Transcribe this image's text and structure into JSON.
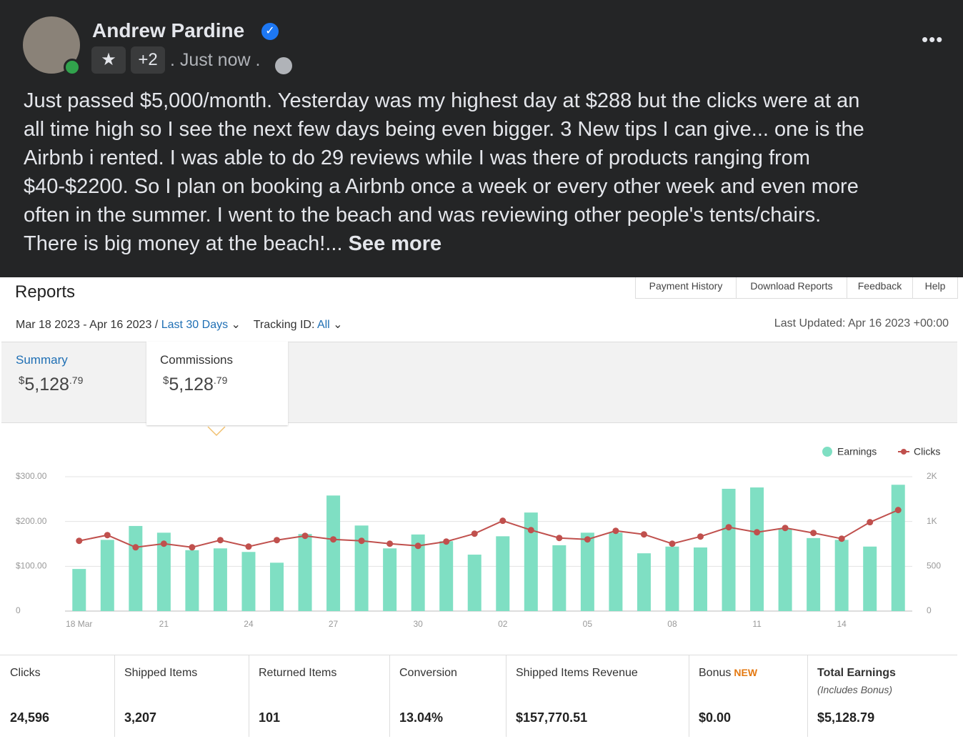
{
  "post": {
    "author": "Andrew Pardine",
    "badge": "+2",
    "time": ". Just now .",
    "lines": [
      "Just passed $5,000/month. Yesterday was my highest day at $288 but the clicks were at an",
      "all time high so I see the next few days being even bigger. 3 New tips I can give... one is the",
      "Airbnb i rented. I was able to do 29 reviews while I was there of products ranging from",
      "$40-$2200. So I plan on booking a Airbnb once a week or every other week and even more",
      "often in the summer. I went to the beach and was reviewing other people's tents/chairs.",
      "There is big money at the beach!..."
    ],
    "see_more": "See more"
  },
  "report": {
    "title": "Reports",
    "tabs": [
      "Payment History",
      "Download Reports",
      "Feedback",
      "Help"
    ],
    "date_range": "Mar 18 2023 - Apr 16 2023 /",
    "range_link": "Last 30 Days",
    "tracking_label": "Tracking ID:",
    "tracking_value": "All",
    "last_updated": "Last Updated: Apr 16 2023 +00:00",
    "summary": {
      "label": "Summary",
      "currency": "$",
      "whole": "5,128",
      "cents": ".79"
    },
    "commissions": {
      "label": "Commissions",
      "currency": "$",
      "whole": "5,128",
      "cents": ".79"
    }
  },
  "chart_data": {
    "type": "bar",
    "categories": [
      "18 Mar",
      null,
      null,
      "21",
      null,
      null,
      "24",
      null,
      null,
      "27",
      null,
      null,
      "30",
      null,
      null,
      "02",
      null,
      null,
      "05",
      null,
      null,
      "08",
      null,
      null,
      "11",
      null,
      null,
      "14",
      null,
      null
    ],
    "series": [
      {
        "name": "Earnings",
        "color": "#7fdfc3",
        "values": [
          94,
          159,
          190,
          175,
          136,
          140,
          132,
          108,
          172,
          258,
          191,
          140,
          171,
          156,
          126,
          167,
          220,
          147,
          175,
          175,
          129,
          144,
          142,
          273,
          276,
          183,
          163,
          159,
          144,
          282
        ]
      },
      {
        "name": "Clicks",
        "color": "#c0504d",
        "axis": "y2",
        "type": "line",
        "values": [
          784,
          848,
          712,
          752,
          712,
          792,
          720,
          792,
          840,
          800,
          784,
          752,
          728,
          776,
          864,
          1008,
          904,
          816,
          800,
          896,
          856,
          752,
          832,
          936,
          880,
          928,
          872,
          808,
          992,
          1128
        ]
      }
    ],
    "ylim": [
      0,
      300
    ],
    "yticks": [
      0,
      {
        "value": 100,
        "label": "$100.00"
      },
      {
        "value": 200,
        "label": "$200.00"
      },
      {
        "value": 300,
        "label": "$300.00"
      }
    ],
    "y2lim": [
      0,
      1500
    ],
    "y2ticks": [
      0,
      500,
      {
        "value": 1000,
        "label": "1K"
      },
      {
        "value": 1500,
        "label": "2K"
      }
    ],
    "grid": true
  },
  "stats": [
    {
      "label": "Clicks",
      "value": "24,596"
    },
    {
      "label": "Shipped Items",
      "value": "3,207"
    },
    {
      "label": "Returned Items",
      "value": "101"
    },
    {
      "label": "Conversion",
      "value": "13.04%"
    },
    {
      "label": "Shipped Items Revenue",
      "value": "$157,770.51"
    },
    {
      "label": "Bonus",
      "tag": "NEW",
      "value": "$0.00"
    },
    {
      "label": "Total Earnings",
      "sublabel": "(Includes Bonus)",
      "value": "$5,128.79"
    }
  ]
}
